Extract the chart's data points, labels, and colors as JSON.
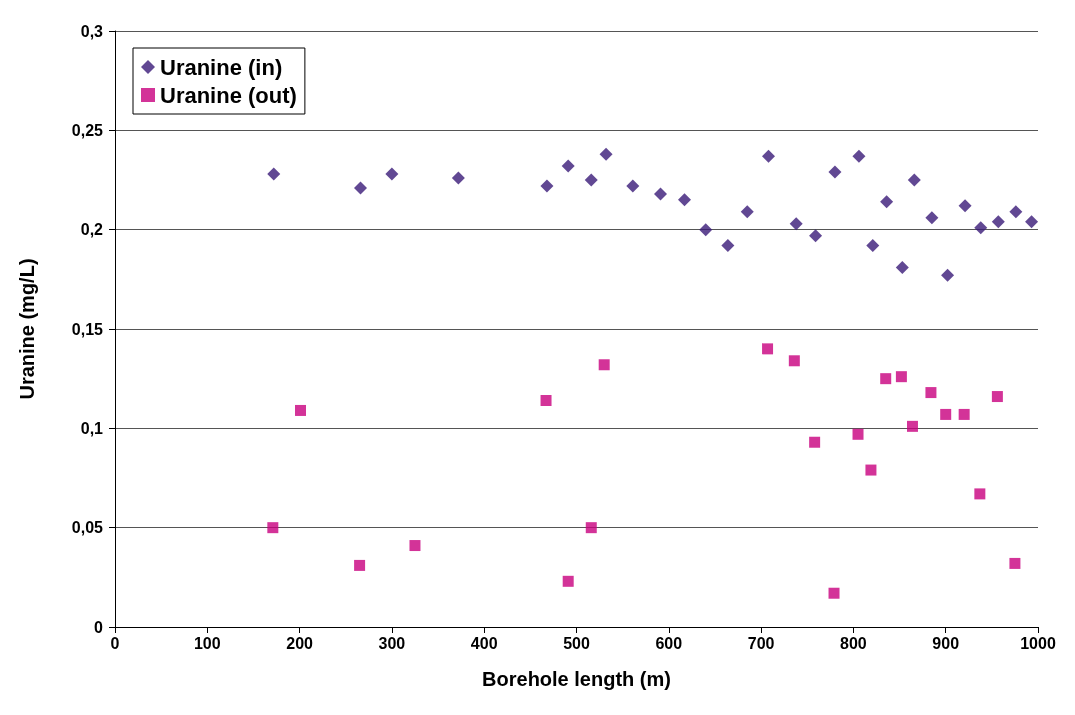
{
  "chart_data": {
    "type": "scatter",
    "xlabel": "Borehole length (m)",
    "ylabel": "Uranine (mg/L)",
    "xlim": [
      0,
      1000
    ],
    "xticks": [
      0,
      100,
      200,
      300,
      400,
      500,
      600,
      700,
      800,
      900,
      1000
    ],
    "ylim": [
      0,
      0.3
    ],
    "yticks": [
      0,
      {
        "value": 0.05,
        "label": "0,05"
      },
      {
        "value": 0.1,
        "label": "0,1"
      },
      {
        "value": 0.15,
        "label": "0,15"
      },
      {
        "value": 0.2,
        "label": "0,2"
      },
      {
        "value": 0.25,
        "label": "0,25"
      },
      {
        "value": 0.3,
        "label": "0,3"
      }
    ],
    "grid": "y",
    "legend": "top left",
    "series": [
      {
        "name": "Uranine (in)",
        "color": "#3a1a78",
        "marker": "diamond",
        "x": [
          172,
          266,
          300,
          372,
          468,
          491,
          516,
          532,
          561,
          591,
          617,
          640,
          664,
          685,
          708,
          738,
          759,
          780,
          806,
          821,
          836,
          853,
          866,
          885,
          902,
          921,
          938,
          957,
          976,
          993
        ],
        "values": [
          0.228,
          0.221,
          0.228,
          0.226,
          0.222,
          0.232,
          0.225,
          0.238,
          0.222,
          0.218,
          0.215,
          0.2,
          0.192,
          0.209,
          0.237,
          0.203,
          0.197,
          0.229,
          0.237,
          0.192,
          0.214,
          0.181,
          0.225,
          0.206,
          0.177,
          0.212,
          0.201,
          0.204,
          0.209,
          0.204
        ]
      },
      {
        "name": "Uranine (out)",
        "color": "#c8007e",
        "marker": "square",
        "x": [
          171,
          201,
          265,
          325,
          467,
          491,
          516,
          530,
          707,
          736,
          758,
          779,
          805,
          819,
          835,
          852,
          864,
          884,
          900,
          920,
          937,
          956,
          975
        ],
        "values": [
          0.05,
          0.109,
          0.031,
          0.041,
          0.114,
          0.023,
          0.05,
          0.132,
          0.14,
          0.134,
          0.093,
          0.017,
          0.097,
          0.079,
          0.125,
          0.126,
          0.101,
          0.118,
          0.107,
          0.107,
          0.067,
          0.116,
          0.032
        ]
      }
    ]
  }
}
